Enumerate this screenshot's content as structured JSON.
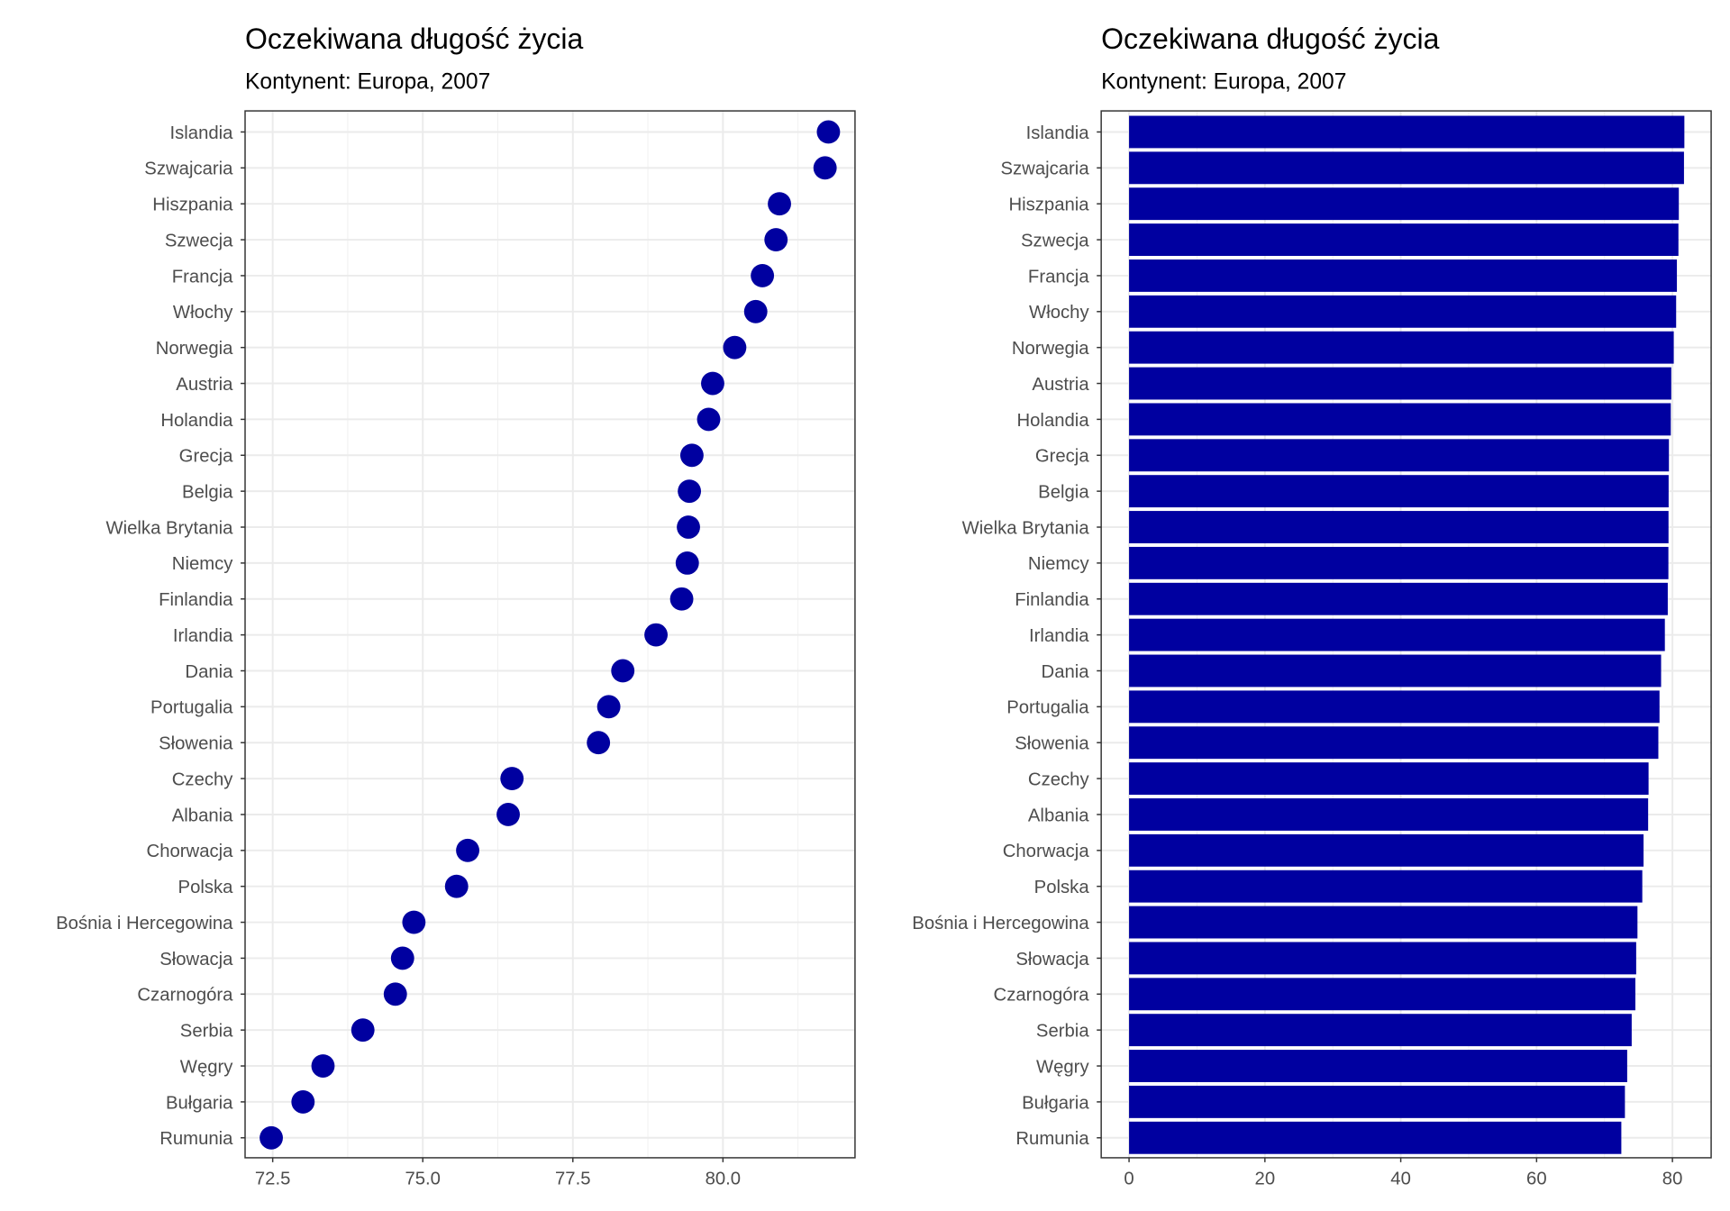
{
  "chart_data": [
    {
      "type": "scatter",
      "title": "Oczekiwana długość życia",
      "subtitle": "Kontynent: Europa, 2007",
      "xlabel": "",
      "ylabel": "",
      "xlim": [
        72.04,
        82.2
      ],
      "xticks": [
        "72.5",
        "75.0",
        "77.5",
        "80.0"
      ],
      "xtick_values": [
        72.5,
        75,
        77.5,
        80
      ],
      "grid": true,
      "color": "#0000A0"
    },
    {
      "type": "bar",
      "orientation": "horizontal",
      "title": "Oczekiwana długość życia",
      "subtitle": "Kontynent: Europa, 2007",
      "xlabel": "",
      "ylabel": "",
      "xlim": [
        -4.1,
        85.7
      ],
      "xticks": [
        "0",
        "20",
        "40",
        "60",
        "80"
      ],
      "xtick_values": [
        0,
        20,
        40,
        60,
        80
      ],
      "grid": true,
      "color": "#0000A0"
    }
  ],
  "categories": [
    "Islandia",
    "Szwajcaria",
    "Hiszpania",
    "Szwecja",
    "Francja",
    "Włochy",
    "Norwegia",
    "Austria",
    "Holandia",
    "Grecja",
    "Belgia",
    "Wielka Brytania",
    "Niemcy",
    "Finlandia",
    "Irlandia",
    "Dania",
    "Portugalia",
    "Słowenia",
    "Czechy",
    "Albania",
    "Chorwacja",
    "Polska",
    "Bośnia i Hercegowina",
    "Słowacja",
    "Czarnogóra",
    "Serbia",
    "Węgry",
    "Bułgaria",
    "Rumunia"
  ],
  "values": [
    81.757,
    81.701,
    80.941,
    80.884,
    80.657,
    80.546,
    80.196,
    79.829,
    79.762,
    79.483,
    79.441,
    79.425,
    79.406,
    79.313,
    78.885,
    78.332,
    78.098,
    77.926,
    76.486,
    76.423,
    75.748,
    75.563,
    74.852,
    74.663,
    74.543,
    74.002,
    73.338,
    73.005,
    72.476
  ]
}
